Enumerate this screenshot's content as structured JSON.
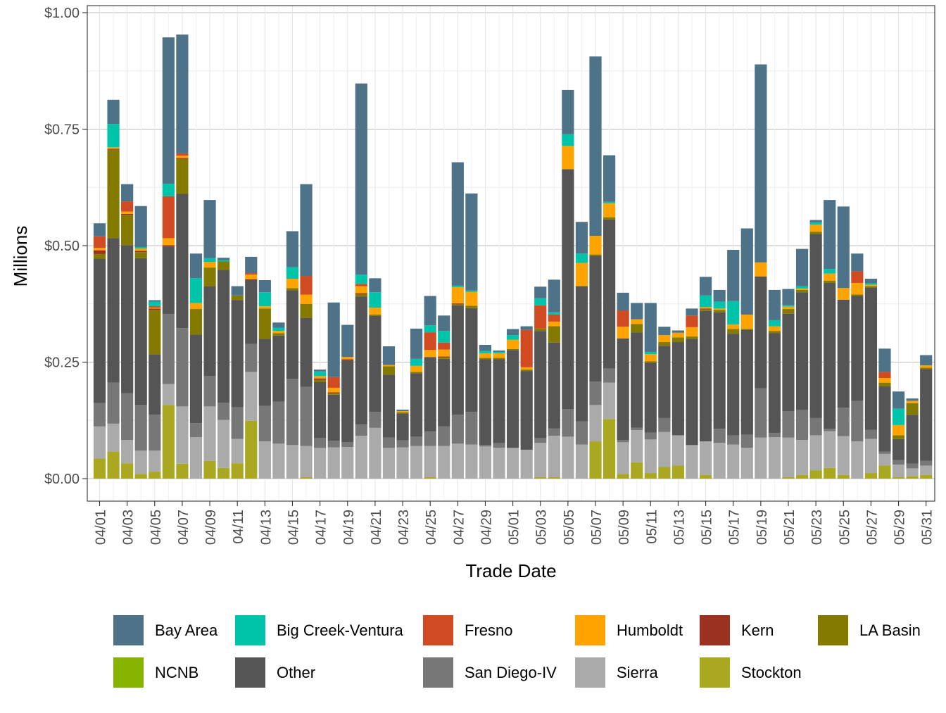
{
  "chart_data": {
    "type": "bar",
    "stacked": true,
    "title": "",
    "xlabel": "Trade Date",
    "ylabel": "Millions",
    "ylim": [
      0,
      1.0
    ],
    "y_ticks": [
      {
        "value": 0.0,
        "label": "$0.00"
      },
      {
        "value": 0.25,
        "label": "$0.25"
      },
      {
        "value": 0.5,
        "label": "$0.50"
      },
      {
        "value": 0.75,
        "label": "$0.75"
      },
      {
        "value": 1.0,
        "label": "$1.00"
      }
    ],
    "grid": true,
    "legend_position": "bottom",
    "categories": [
      "04/01",
      "04/02",
      "04/03",
      "04/04",
      "04/05",
      "04/06",
      "04/07",
      "04/08",
      "04/09",
      "04/10",
      "04/11",
      "04/12",
      "04/13",
      "04/14",
      "04/15",
      "04/16",
      "04/17",
      "04/18",
      "04/19",
      "04/20",
      "04/21",
      "04/22",
      "04/23",
      "04/24",
      "04/25",
      "04/26",
      "04/27",
      "04/28",
      "04/29",
      "04/30",
      "05/01",
      "05/02",
      "05/03",
      "05/04",
      "05/05",
      "05/06",
      "05/07",
      "05/08",
      "05/09",
      "05/10",
      "05/11",
      "05/12",
      "05/13",
      "05/14",
      "05/15",
      "05/16",
      "05/17",
      "05/18",
      "05/19",
      "05/20",
      "05/21",
      "05/22",
      "05/23",
      "05/24",
      "05/25",
      "05/26",
      "05/27",
      "05/28",
      "05/29",
      "05/30",
      "05/31"
    ],
    "x_tick_labels": [
      "04/01",
      "04/03",
      "04/05",
      "04/07",
      "04/09",
      "04/11",
      "04/13",
      "04/15",
      "04/17",
      "04/19",
      "04/21",
      "04/23",
      "04/25",
      "04/27",
      "04/29",
      "05/01",
      "05/03",
      "05/05",
      "05/07",
      "05/09",
      "05/11",
      "05/13",
      "05/15",
      "05/17",
      "05/19",
      "05/21",
      "05/23",
      "05/25",
      "05/27",
      "05/29",
      "05/31"
    ],
    "series": [
      {
        "name": "Stockton",
        "color": "#A9A820",
        "values": [
          0.043,
          0.058,
          0.033,
          0.01,
          0.015,
          0.158,
          0.032,
          0,
          0.038,
          0.023,
          0.033,
          0.124,
          0,
          0,
          0,
          0.003,
          0,
          0,
          0,
          0,
          0,
          0,
          0,
          0,
          0.003,
          0,
          0,
          0,
          0,
          0,
          0,
          0,
          0.003,
          0.003,
          0,
          0,
          0.08,
          0.128,
          0.01,
          0.035,
          0.012,
          0.025,
          0.028,
          0,
          0.008,
          0,
          0,
          0,
          0,
          0,
          0.003,
          0.008,
          0.018,
          0.023,
          0.008,
          0,
          0.012,
          0.028,
          0.003,
          0.005,
          0.008
        ]
      },
      {
        "name": "Sierra",
        "color": "#AAAAAA",
        "values": [
          0.069,
          0.06,
          0.05,
          0.05,
          0.045,
          0.045,
          0.123,
          0.089,
          0.117,
          0.103,
          0.052,
          0.105,
          0.08,
          0.075,
          0.072,
          0.067,
          0.066,
          0.067,
          0.068,
          0.092,
          0.109,
          0.066,
          0.067,
          0.07,
          0.067,
          0.07,
          0.075,
          0.073,
          0.069,
          0.066,
          0.066,
          0.062,
          0.074,
          0.089,
          0.09,
          0.073,
          0.078,
          0.078,
          0.068,
          0.069,
          0.072,
          0.075,
          0.065,
          0.072,
          0.072,
          0.077,
          0.073,
          0.066,
          0.088,
          0.089,
          0.085,
          0.075,
          0.075,
          0.079,
          0.083,
          0.08,
          0.073,
          0.025,
          0.027,
          0.017,
          0.02
        ]
      },
      {
        "name": "San Diego-IV",
        "color": "#777777",
        "values": [
          0.05,
          0.088,
          0.1,
          0.098,
          0.077,
          0.15,
          0.168,
          0.03,
          0.065,
          0.037,
          0.068,
          0.06,
          0.076,
          0.09,
          0.142,
          0.127,
          0.021,
          0.014,
          0.01,
          0.024,
          0.034,
          0.022,
          0.015,
          0.02,
          0.031,
          0.042,
          0.062,
          0.07,
          0.003,
          0.01,
          0,
          0,
          0.01,
          0.016,
          0.059,
          0.05,
          0.05,
          0.03,
          0.005,
          0.005,
          0.015,
          0.03,
          0,
          0,
          0,
          0.03,
          0.02,
          0.028,
          0.106,
          0.009,
          0.057,
          0.064,
          0.037,
          0.005,
          0.061,
          0.087,
          0.02,
          0.005,
          0.01,
          0.01,
          0.01
        ]
      },
      {
        "name": "Other",
        "color": "#555555",
        "values": [
          0.31,
          0.31,
          0.318,
          0.315,
          0.13,
          0.145,
          0.288,
          0.19,
          0.193,
          0.285,
          0.23,
          0.137,
          0.144,
          0.142,
          0.19,
          0.148,
          0.12,
          0.099,
          0.176,
          0.275,
          0.206,
          0.135,
          0.058,
          0.136,
          0.16,
          0.145,
          0.235,
          0.223,
          0.184,
          0.18,
          0.21,
          0.169,
          0.23,
          0.184,
          0.515,
          0.29,
          0.27,
          0.32,
          0.218,
          0.205,
          0.15,
          0.155,
          0.2,
          0.228,
          0.28,
          0.25,
          0.218,
          0.225,
          0.24,
          0.214,
          0.209,
          0.253,
          0.395,
          0.313,
          0.232,
          0.225,
          0.305,
          0.14,
          0.045,
          0.105,
          0.197
        ]
      },
      {
        "name": "NCNB",
        "color": "#86B300",
        "values": [
          0,
          0,
          0,
          0,
          0,
          0,
          0,
          0,
          0,
          0,
          0,
          0,
          0,
          0,
          0,
          0,
          0,
          0,
          0,
          0,
          0,
          0,
          0,
          0,
          0,
          0,
          0,
          0,
          0,
          0,
          0,
          0,
          0,
          0,
          0,
          0,
          0,
          0,
          0,
          0,
          0,
          0,
          0,
          0,
          0,
          0,
          0,
          0,
          0,
          0,
          0,
          0,
          0,
          0,
          0,
          0,
          0,
          0,
          0,
          0,
          0
        ]
      },
      {
        "name": "LA Basin",
        "color": "#857A00",
        "values": [
          0.01,
          0.19,
          0.065,
          0.013,
          0.095,
          0,
          0.075,
          0.055,
          0.04,
          0.018,
          0.01,
          0,
          0.065,
          0.005,
          0.005,
          0.03,
          0.005,
          0.003,
          0,
          0.005,
          0.003,
          0.018,
          0.002,
          0.003,
          0,
          0.003,
          0.002,
          0.005,
          0.003,
          0.003,
          0.002,
          0.003,
          0.005,
          0.035,
          0,
          0,
          0.003,
          0.005,
          0,
          0.018,
          0.003,
          0.008,
          0.01,
          0.005,
          0.003,
          0.005,
          0.01,
          0.003,
          0,
          0.005,
          0.01,
          0.005,
          0.005,
          0.005,
          0,
          0.003,
          0.003,
          0.008,
          0.008,
          0.025,
          0.003
        ]
      },
      {
        "name": "Kern",
        "color": "#9B3121",
        "values": [
          0.008,
          0.002,
          0.002,
          0.003,
          0.003,
          0.003,
          0.002,
          0,
          0,
          0,
          0,
          0.002,
          0,
          0,
          0,
          0,
          0.003,
          0.002,
          0.002,
          0.002,
          0,
          0,
          0,
          0,
          0,
          0.002,
          0.002,
          0,
          0,
          0,
          0,
          0,
          0,
          0,
          0,
          0,
          0,
          0,
          0,
          0,
          0,
          0,
          0,
          0,
          0.002,
          0,
          0,
          0,
          0,
          0,
          0,
          0,
          0,
          0,
          0,
          0,
          0,
          0,
          0,
          0,
          0
        ]
      },
      {
        "name": "Humboldt",
        "color": "#FFA300",
        "values": [
          0.005,
          0.003,
          0.005,
          0.005,
          0.002,
          0.015,
          0.005,
          0.013,
          0.012,
          0,
          0,
          0.01,
          0.005,
          0.005,
          0.02,
          0.02,
          0.005,
          0.01,
          0.005,
          0.015,
          0.015,
          0.003,
          0.003,
          0.013,
          0.015,
          0.015,
          0.035,
          0.03,
          0.01,
          0.01,
          0.02,
          0.005,
          0,
          0.01,
          0.05,
          0.05,
          0.04,
          0.03,
          0.025,
          0.01,
          0.015,
          0.015,
          0.01,
          0.02,
          0.003,
          0.003,
          0.01,
          0.03,
          0.03,
          0.01,
          0.005,
          0.003,
          0.015,
          0.015,
          0.025,
          0.025,
          0.003,
          0.01,
          0.022,
          0.005,
          0.005
        ]
      },
      {
        "name": "Fresno",
        "color": "#D04A22",
        "values": [
          0.025,
          0,
          0.022,
          0,
          0.003,
          0.09,
          0.005,
          0,
          0,
          0,
          0,
          0.003,
          0,
          0,
          0,
          0.04,
          0,
          0.023,
          0,
          0.005,
          0,
          0,
          0,
          0,
          0.038,
          0.015,
          0,
          0,
          0,
          0,
          0,
          0.08,
          0.05,
          0.015,
          0,
          0,
          0,
          0,
          0.035,
          0,
          0,
          0,
          0,
          0.025,
          0,
          0,
          0,
          0,
          0,
          0,
          0,
          0,
          0,
          0,
          0,
          0.025,
          0,
          0.013,
          0,
          0,
          0
        ]
      },
      {
        "name": "Big Creek-Ventura",
        "color": "#00C4AA",
        "values": [
          0,
          0.05,
          0,
          0.003,
          0.01,
          0.027,
          0,
          0.053,
          0.008,
          0.003,
          0,
          0,
          0.03,
          0.007,
          0.025,
          0,
          0.01,
          0,
          0,
          0.02,
          0.033,
          0,
          0,
          0.015,
          0.015,
          0.025,
          0.003,
          0.003,
          0.005,
          0.003,
          0.01,
          0,
          0.015,
          0.005,
          0.025,
          0.02,
          0,
          0.003,
          0,
          0,
          0.005,
          0,
          0,
          0,
          0.025,
          0.015,
          0.05,
          0,
          0,
          0.013,
          0.003,
          0.005,
          0.005,
          0.01,
          0,
          0,
          0.003,
          0,
          0.035,
          0,
          0
        ]
      },
      {
        "name": "Bay Area",
        "color": "#4E7389",
        "values": [
          0.028,
          0.052,
          0.037,
          0.088,
          0.003,
          0.314,
          0.255,
          0.053,
          0.125,
          0.005,
          0.02,
          0.035,
          0.026,
          0.011,
          0.077,
          0.197,
          0.004,
          0.16,
          0.069,
          0.41,
          0.03,
          0.04,
          0.003,
          0.065,
          0.063,
          0.033,
          0.265,
          0.208,
          0.013,
          0.003,
          0.013,
          0.008,
          0.025,
          0.07,
          0.095,
          0.068,
          0.385,
          0.1,
          0.038,
          0.035,
          0.105,
          0.018,
          0.005,
          0.015,
          0.04,
          0.025,
          0.11,
          0.185,
          0.425,
          0.065,
          0.035,
          0.08,
          0.005,
          0.148,
          0.175,
          0.038,
          0.01,
          0.05,
          0.037,
          0.005,
          0.022
        ]
      }
    ]
  }
}
